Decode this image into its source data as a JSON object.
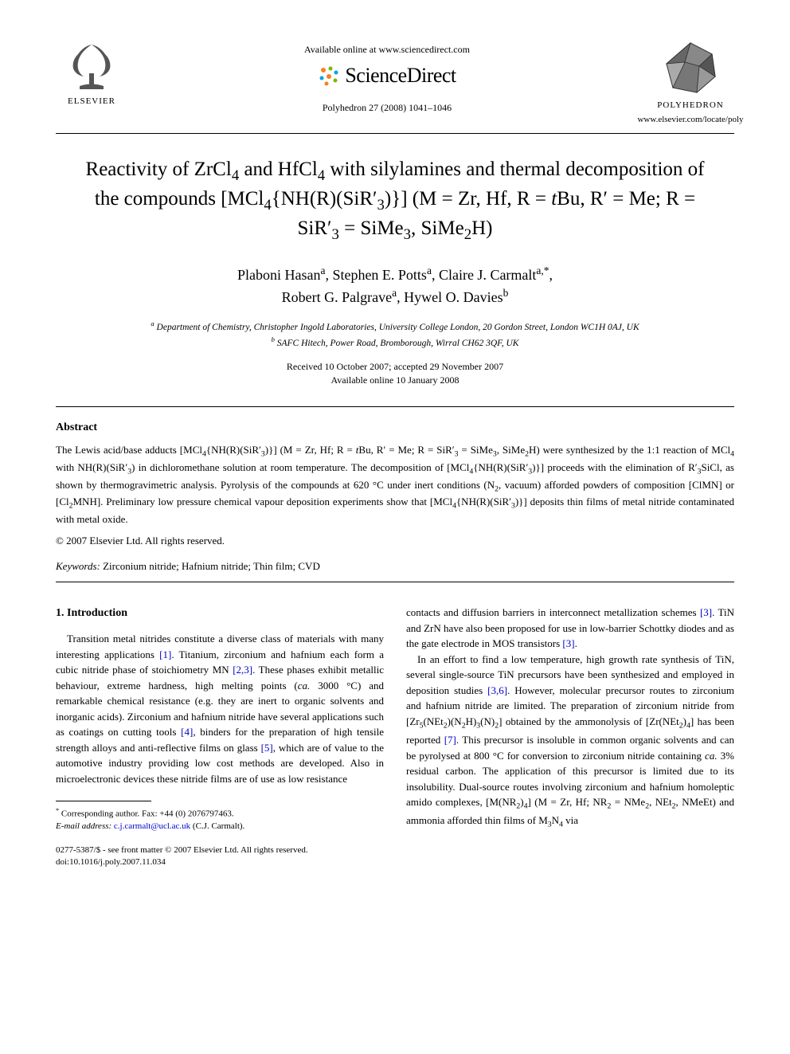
{
  "header": {
    "publisher_label": "ELSEVIER",
    "available_online": "Available online at www.sciencedirect.com",
    "brand": "ScienceDirect",
    "journal_ref": "Polyhedron 27 (2008) 1041–1046",
    "journal_label": "POLYHEDRON",
    "journal_url": "www.elsevier.com/locate/poly"
  },
  "title_html": "Reactivity of ZrCl<sub>4</sub> and HfCl<sub>4</sub> with silylamines and thermal decomposition of the compounds [MCl<sub>4</sub>{NH(R)(SiR′<sub>3</sub>)}] (M = Zr, Hf, R = <i>t</i>Bu, R′ = Me; R = SiR′<sub>3</sub> = SiMe<sub>3</sub>, SiMe<sub>2</sub>H)",
  "authors_html": "Plaboni Hasan<sup>a</sup>, Stephen E. Potts<sup>a</sup>, Claire J. Carmalt<sup>a,*</sup>,<br>Robert G. Palgrave<sup>a</sup>, Hywel O. Davies<sup>b</sup>",
  "affiliations_html": "<sup>a</sup> Department of Chemistry, Christopher Ingold Laboratories, University College London, 20 Gordon Street, London WC1H 0AJ, UK<br><sup>b</sup> SAFC Hitech, Power Road, Bromborough, Wirral CH62 3QF, UK",
  "dates": {
    "received_accepted": "Received 10 October 2007; accepted 29 November 2007",
    "available": "Available online 10 January 2008"
  },
  "abstract": {
    "heading": "Abstract",
    "text_html": "The Lewis acid/base adducts [MCl<sub>4</sub>{NH(R)(SiR′<sub>3</sub>)}] (M = Zr, Hf; R = <i>t</i>Bu, R′ = Me; R = SiR′<sub>3</sub> = SiMe<sub>3</sub>, SiMe<sub>2</sub>H) were synthesized by the 1:1 reaction of MCl<sub>4</sub> with NH(R)(SiR′<sub>3</sub>) in dichloromethane solution at room temperature. The decomposition of [MCl<sub>4</sub>{NH(R)(SiR′<sub>3</sub>)}] proceeds with the elimination of R′<sub>3</sub>SiCl, as shown by thermogravimetric analysis. Pyrolysis of the compounds at 620 °C under inert conditions (N<sub>2</sub>, vacuum) afforded powders of composition [ClMN] or [Cl<sub>2</sub>MNH]. Preliminary low pressure chemical vapour deposition experiments show that [MCl<sub>4</sub>{NH(R)(SiR′<sub>3</sub>)}] deposits thin films of metal nitride contaminated with metal oxide.",
    "copyright": "© 2007 Elsevier Ltd. All rights reserved."
  },
  "keywords": {
    "label": "Keywords:",
    "text": "Zirconium nitride; Hafnium nitride; Thin film; CVD"
  },
  "section1": {
    "heading": "1. Introduction",
    "left_para_html": "Transition metal nitrides constitute a diverse class of materials with many interesting applications <span class=\"ref-link\">[1]</span>. Titanium, zirconium and hafnium each form a cubic nitride phase of stoichiometry MN <span class=\"ref-link\">[2,3]</span>. These phases exhibit metallic behaviour, extreme hardness, high melting points (<i>ca.</i> 3000 °C) and remarkable chemical resistance (e.g. they are inert to organic solvents and inorganic acids). Zirconium and hafnium nitride have several applications such as coatings on cutting tools <span class=\"ref-link\">[4]</span>, binders for the preparation of high tensile strength alloys and anti-reflective films on glass <span class=\"ref-link\">[5]</span>, which are of value to the automotive industry providing low cost methods are developed. Also in microelectronic devices these nitride films are of use as low resistance",
    "right_para1_html": "contacts and diffusion barriers in interconnect metallization schemes <span class=\"ref-link\">[3]</span>. TiN and ZrN have also been proposed for use in low-barrier Schottky diodes and as the gate electrode in MOS transistors <span class=\"ref-link\">[3]</span>.",
    "right_para2_html": "In an effort to find a low temperature, high growth rate synthesis of TiN, several single-source TiN precursors have been synthesized and employed in deposition studies <span class=\"ref-link\">[3,6]</span>. However, molecular precursor routes to zirconium and hafnium nitride are limited. The preparation of zirconium nitride from [Zr<sub>5</sub>(NEt<sub>2</sub>)(N<sub>2</sub>H)<sub>3</sub>(N)<sub>2</sub>] obtained by the ammonolysis of [Zr(NEt<sub>2</sub>)<sub>4</sub>] has been reported <span class=\"ref-link\">[7]</span>. This precursor is insoluble in common organic solvents and can be pyrolysed at 800 °C for conversion to zirconium nitride containing <i>ca.</i> 3% residual carbon. The application of this precursor is limited due to its insolubility. Dual-source routes involving zirconium and hafnium homoleptic amido complexes, [M(NR<sub>2</sub>)<sub>4</sub>] (M = Zr, Hf; NR<sub>2</sub> = NMe<sub>2</sub>, NEt<sub>2</sub>, NMeEt) and ammonia afforded thin films of M<sub>3</sub>N<sub>4</sub> via"
  },
  "footnotes": {
    "corresponding": "Corresponding author. Fax: +44 (0) 2076797463.",
    "email_label": "E-mail address:",
    "email": "c.j.carmalt@ucl.ac.uk",
    "email_attrib": "(C.J. Carmalt)."
  },
  "bottom": {
    "line1": "0277-5387/$ - see front matter © 2007 Elsevier Ltd. All rights reserved.",
    "line2": "doi:10.1016/j.poly.2007.11.034"
  },
  "colors": {
    "text": "#000000",
    "background": "#ffffff",
    "link": "#0000cc",
    "sd_orange": "#f58220",
    "sd_green": "#7ab800",
    "sd_blue": "#00a4e4",
    "polyhedron_fill": "#4d4d4d"
  }
}
